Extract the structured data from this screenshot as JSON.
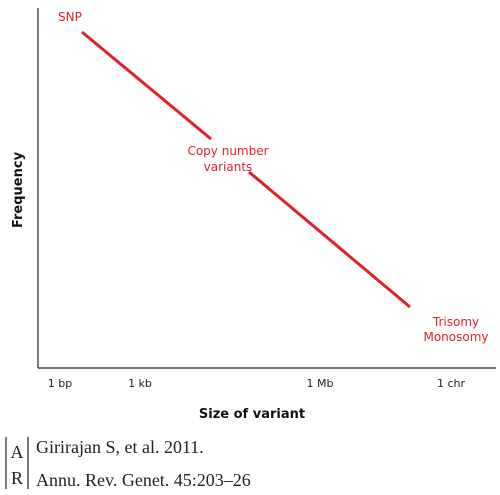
{
  "y_axis_label": "Frequency",
  "x_axis_label": "Size of variant",
  "x_labels": [
    "1 bp",
    "1 kb",
    "1 Mb",
    "1 chr"
  ],
  "annotations": {
    "snp": "SNP",
    "cnv": [
      "Copy number",
      "variants"
    ],
    "aneuploidy": [
      "Trisomy",
      "Monosomy"
    ]
  },
  "citation": {
    "logo": [
      "A",
      "R"
    ],
    "lines": [
      "Girirajan S, et al. 2011.",
      "Annu. Rev. Genet. 45:203–26"
    ]
  }
}
